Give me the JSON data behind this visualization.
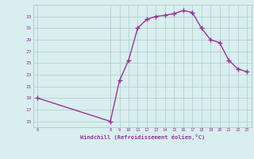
{
  "xlabel": "Windchill (Refroidissement éolien,°C)",
  "x_data": [
    0,
    8,
    9,
    10,
    11,
    12,
    13,
    14,
    15,
    16,
    17,
    18,
    19,
    20,
    21,
    22,
    23
  ],
  "y_data": [
    19,
    15,
    22,
    25.5,
    31,
    32.5,
    33,
    33.2,
    33.5,
    34,
    33.7,
    31,
    29,
    28.5,
    25.5,
    24,
    23.5
  ],
  "color": "#993399",
  "bg_color": "#d9eeee",
  "grid_color": "#aacccc",
  "xlim": [
    -0.5,
    23.5
  ],
  "ylim": [
    14.0,
    35.0
  ],
  "yticks": [
    15,
    17,
    19,
    21,
    23,
    25,
    27,
    29,
    31,
    33
  ],
  "xticks": [
    0,
    8,
    9,
    10,
    11,
    12,
    13,
    14,
    15,
    16,
    17,
    18,
    19,
    20,
    21,
    22,
    23
  ],
  "xtick_labels": [
    "0",
    "8",
    "9",
    "10",
    "11",
    "12",
    "13",
    "14",
    "15",
    "16",
    "17",
    "18",
    "19",
    "20",
    "21",
    "22",
    "23"
  ],
  "marker": "+",
  "markersize": 4,
  "linewidth": 1.0
}
